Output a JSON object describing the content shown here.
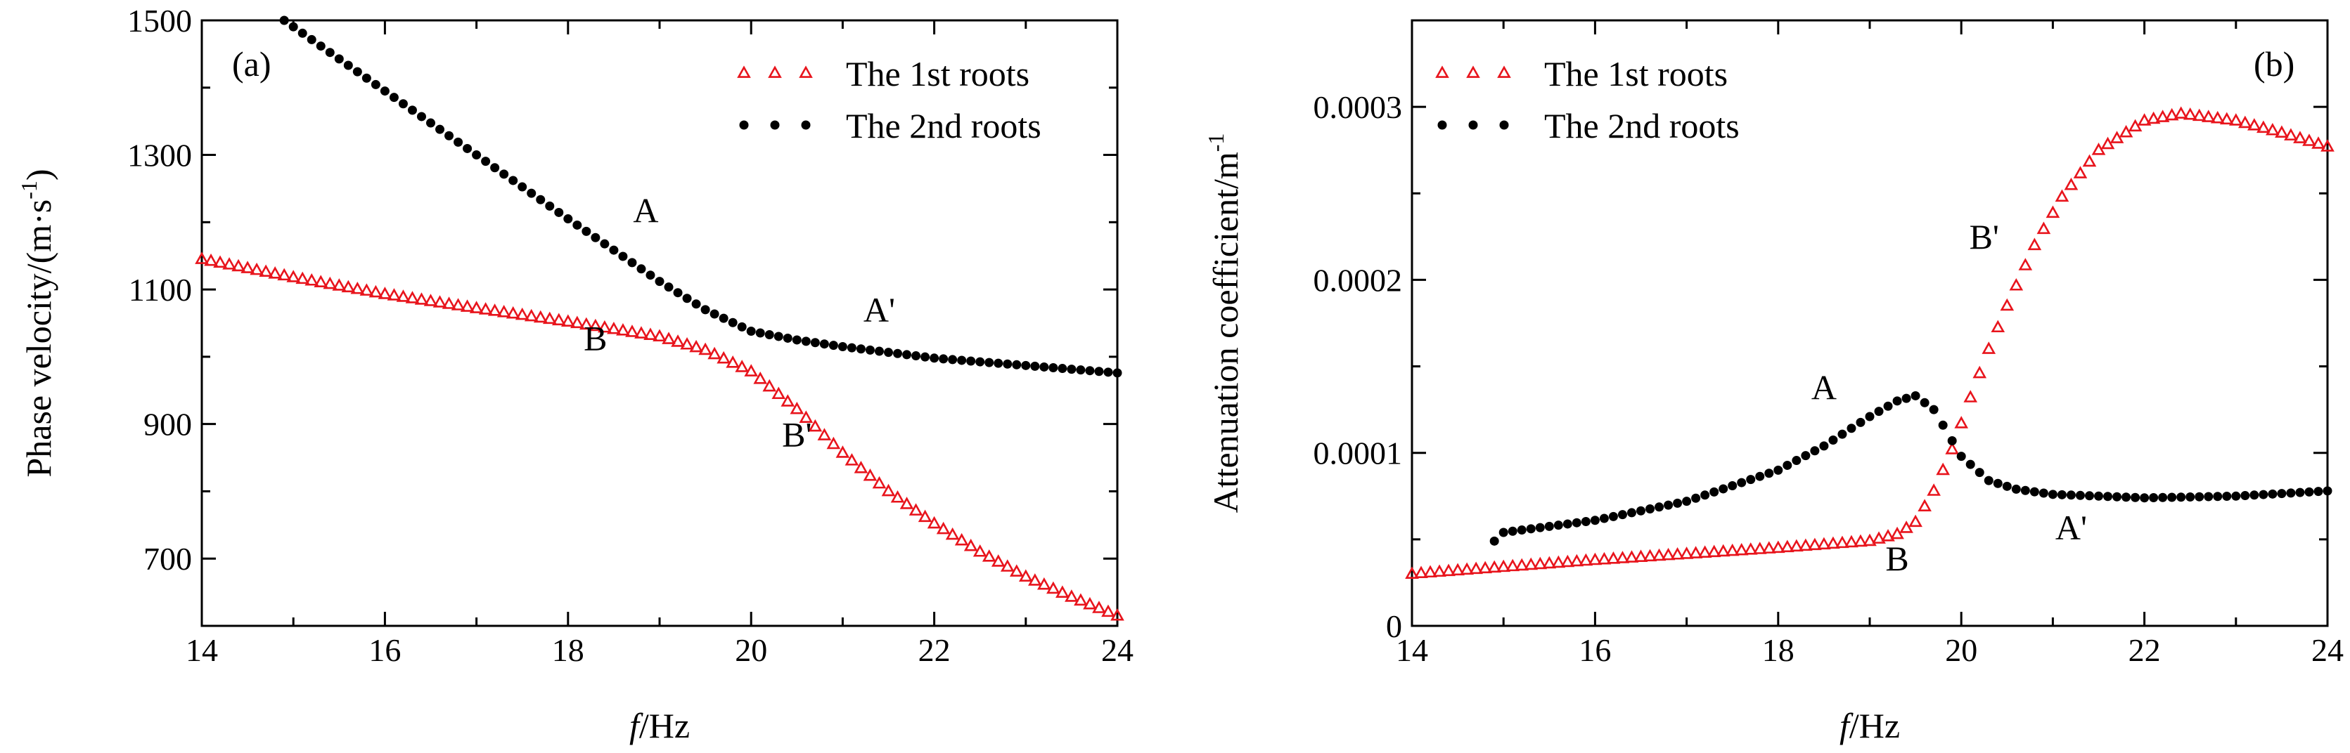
{
  "chart_data": [
    {
      "type": "scatter",
      "panel_label": "(a)",
      "xlabel_italic": "f",
      "xlabel_rest": "/Hz",
      "ylabel_main": "Phase velocity/(m·s",
      "ylabel_sup": "-1",
      "ylabel_close": ")",
      "xlim": [
        14,
        24
      ],
      "ylim": [
        600,
        1500
      ],
      "xticks": [
        "14",
        "16",
        "18",
        "20",
        "22",
        "24"
      ],
      "yticks": [
        "700",
        "900",
        "1100",
        "1300",
        "1500"
      ],
      "legend_position": "top-right",
      "series": [
        {
          "name": "The 1st roots",
          "marker": "open-triangle",
          "color": "#e8141c",
          "x_start": 14,
          "x_step": 0.1,
          "x_end": 24,
          "knots_x": [
            14,
            15,
            16,
            17,
            18,
            19,
            19.5,
            20,
            20.5,
            21,
            21.5,
            22,
            22.5,
            23,
            23.5,
            24
          ],
          "knots_y": [
            1145,
            1118,
            1093,
            1072,
            1052,
            1030,
            1010,
            978,
            922,
            857,
            800,
            752,
            710,
            673,
            643,
            615
          ]
        },
        {
          "name": "The 2nd roots",
          "marker": "filled-circle",
          "color": "#000000",
          "x_start": 14.9,
          "x_step": 0.1,
          "x_end": 24,
          "knots_x": [
            14.9,
            16,
            17,
            18,
            19,
            19.5,
            20,
            20.5,
            21,
            22,
            23,
            24
          ],
          "knots_y": [
            1500,
            1395,
            1300,
            1205,
            1112,
            1070,
            1038,
            1025,
            1015,
            998,
            987,
            976
          ]
        }
      ],
      "annotations": [
        {
          "text": "A",
          "x": 18.85,
          "y": 1200
        },
        {
          "text": "A'",
          "x": 21.4,
          "y": 1052
        },
        {
          "text": "B",
          "x": 18.3,
          "y": 1010
        },
        {
          "text": "B'",
          "x": 20.5,
          "y": 867
        }
      ]
    },
    {
      "type": "scatter",
      "panel_label": "(b)",
      "xlabel_italic": "f",
      "xlabel_rest": "/Hz",
      "ylabel_main": "Attenuation coefficient/m",
      "ylabel_sup": "-1",
      "ylabel_close": "",
      "xlim": [
        14,
        24
      ],
      "ylim": [
        0,
        0.00035
      ],
      "xticks": [
        "14",
        "16",
        "18",
        "20",
        "22",
        "24"
      ],
      "yticks": [
        "0",
        "0.0001",
        "0.0002",
        "0.0003"
      ],
      "legend_position": "top-left",
      "series": [
        {
          "name": "The 1st roots",
          "marker": "open-triangle",
          "color": "#e8141c",
          "x_start": 14,
          "x_step": 0.1,
          "x_end": 24,
          "knots_x": [
            14,
            16,
            18,
            19,
            19.3,
            19.5,
            19.7,
            19.9,
            20.1,
            20.3,
            20.5,
            20.8,
            21.1,
            21.5,
            22,
            22.4,
            23,
            23.5,
            24
          ],
          "knots_y": [
            3e-05,
            3.8e-05,
            4.5e-05,
            4.9e-05,
            5.3e-05,
            6e-05,
            7.8e-05,
            0.000102,
            0.000132,
            0.00016,
            0.000185,
            0.00022,
            0.000248,
            0.000275,
            0.000292,
            0.000296,
            0.000292,
            0.000285,
            0.000277
          ]
        },
        {
          "name": "The 2nd roots",
          "marker": "filled-circle",
          "color": "#000000",
          "x_start": 14.9,
          "x_step": 0.1,
          "x_end": 24,
          "knots_x": [
            14.9,
            15,
            16,
            17,
            18,
            18.5,
            19,
            19.3,
            19.5,
            19.7,
            20,
            20.3,
            20.6,
            21,
            22,
            23,
            24
          ],
          "knots_y": [
            4.9e-05,
            5.4e-05,
            6.1e-05,
            7.2e-05,
            9e-05,
            0.000104,
            0.000121,
            0.00013,
            0.000133,
            0.000125,
            9.8e-05,
            8.4e-05,
            7.9e-05,
            7.6e-05,
            7.4e-05,
            7.5e-05,
            7.8e-05
          ]
        }
      ],
      "annotations": [
        {
          "text": "A",
          "x": 18.5,
          "y": 0.000131
        },
        {
          "text": "A'",
          "x": 21.2,
          "y": 5e-05
        },
        {
          "text": "B",
          "x": 19.3,
          "y": 3.2e-05
        },
        {
          "text": "B'",
          "x": 20.25,
          "y": 0.000218
        }
      ]
    }
  ]
}
